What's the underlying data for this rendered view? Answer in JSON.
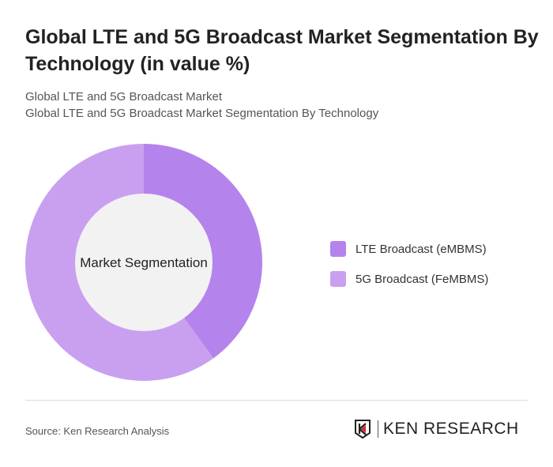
{
  "header": {
    "title": "Global LTE and 5G Broadcast Market Segmentation By Technology (in value %)",
    "subtitle1": "Global LTE and 5G Broadcast Market",
    "subtitle2": "Global LTE and 5G Broadcast Market Segmentation By Technology"
  },
  "chart_data": {
    "type": "pie",
    "variant": "donut",
    "center_label": "Market Segmentation",
    "categories": [
      "LTE Broadcast (eMBMS)",
      "5G Broadcast (FeMBMS)"
    ],
    "values": [
      40,
      60
    ],
    "colors": [
      "#b583ec",
      "#c9a0f0"
    ],
    "legend_position": "right"
  },
  "footer": {
    "source": "Source: Ken Research Analysis",
    "logo_text": "KEN RESEARCH"
  }
}
